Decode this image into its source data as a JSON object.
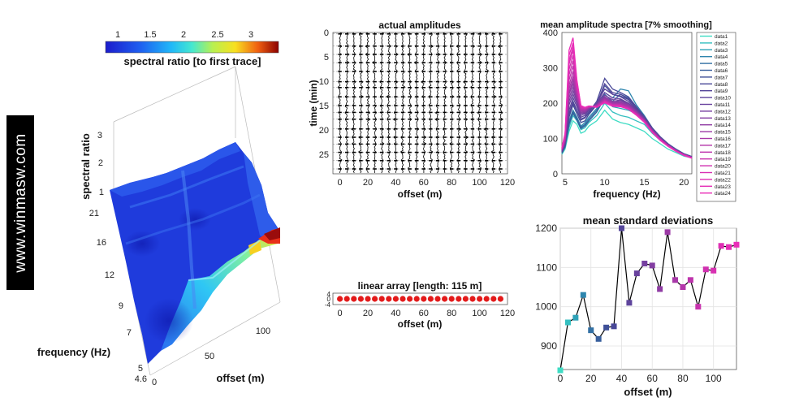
{
  "watermark": "www.winmasw.com",
  "surface3d": {
    "type": "surface",
    "colorbar": {
      "ticks": [
        "1",
        "1.5",
        "2",
        "2.5",
        "3"
      ],
      "label": "spectral ratio [to first trace]",
      "range": [
        0.8,
        3.4
      ]
    },
    "zlabel": "spectral ratio",
    "ylabel": "frequency (Hz)",
    "xlabel": "offset (m)",
    "z_ticks": [
      "1",
      "2",
      "3"
    ],
    "freq_ticks": [
      "21",
      "16",
      "12",
      "9",
      "7",
      "5",
      "4.6"
    ],
    "offset_ticks": [
      "0",
      "50",
      "100"
    ],
    "colors": {
      "low": "#1f1fd0",
      "mid": "#34d6e4",
      "high": "#8b0000"
    }
  },
  "chart_data": [
    {
      "id": "actual_amplitudes",
      "type": "wiggle",
      "title": "actual amplitudes",
      "xlabel": "offset (m)",
      "ylabel": "time (min)",
      "xlim": [
        -5,
        120
      ],
      "ylim": [
        0,
        29
      ],
      "x_ticks": [
        0,
        20,
        40,
        60,
        80,
        100,
        120
      ],
      "y_ticks": [
        0,
        5,
        10,
        15,
        20,
        25
      ],
      "trace_offsets": [
        0,
        5,
        10,
        15,
        20,
        25,
        30,
        35,
        40,
        45,
        50,
        55,
        60,
        65,
        70,
        75,
        80,
        85,
        90,
        95,
        100,
        105,
        110,
        115
      ],
      "event_times": [
        0.3,
        2.8,
        4.5,
        6.2,
        8.0,
        10.1,
        11.3,
        13.2,
        15.0,
        16.4,
        17.8,
        19.8,
        21.5,
        22.9,
        24.6,
        26.3,
        28.0
      ]
    },
    {
      "id": "mean_amplitude_spectra",
      "type": "line",
      "title": "mean amplitude spectra [7% smoothing]",
      "xlabel": "frequency (Hz)",
      "ylabel": "",
      "xlim": [
        4.6,
        21
      ],
      "ylim": [
        0,
        400
      ],
      "x_ticks": [
        5,
        10,
        15,
        20
      ],
      "y_ticks": [
        0,
        100,
        200,
        300,
        400
      ],
      "legend_position": "right",
      "freqs": [
        4.6,
        5,
        5.5,
        6,
        6.5,
        7,
        7.5,
        8,
        9,
        10,
        11,
        12,
        13,
        14,
        15,
        16,
        17,
        18,
        19,
        20,
        21
      ],
      "series": [
        {
          "name": "data1",
          "color": "#3fdcc4",
          "values": [
            55,
            70,
            120,
            150,
            140,
            115,
            120,
            135,
            150,
            180,
            155,
            145,
            140,
            130,
            120,
            100,
            85,
            70,
            60,
            50,
            45
          ]
        },
        {
          "name": "data2",
          "color": "#34bfc0",
          "values": [
            58,
            75,
            130,
            165,
            150,
            125,
            130,
            145,
            165,
            200,
            175,
            165,
            160,
            150,
            140,
            115,
            95,
            78,
            65,
            54,
            47
          ]
        },
        {
          "name": "data3",
          "color": "#2ea2b8",
          "values": [
            60,
            78,
            140,
            175,
            158,
            130,
            138,
            150,
            175,
            215,
            190,
            185,
            180,
            170,
            155,
            125,
            100,
            82,
            67,
            55,
            48
          ]
        },
        {
          "name": "data4",
          "color": "#2e86ae",
          "values": [
            62,
            80,
            150,
            180,
            160,
            135,
            145,
            160,
            185,
            230,
            215,
            240,
            235,
            195,
            165,
            130,
            105,
            85,
            70,
            57,
            49
          ]
        },
        {
          "name": "data5",
          "color": "#3270a4",
          "values": [
            60,
            78,
            145,
            178,
            158,
            132,
            140,
            155,
            180,
            225,
            205,
            225,
            215,
            185,
            160,
            128,
            103,
            84,
            69,
            56,
            48
          ]
        },
        {
          "name": "data6",
          "color": "#375e9c",
          "values": [
            58,
            76,
            140,
            172,
            152,
            128,
            135,
            150,
            175,
            215,
            200,
            210,
            200,
            178,
            155,
            125,
            101,
            82,
            67,
            55,
            47
          ]
        },
        {
          "name": "data7",
          "color": "#3f5098",
          "values": [
            62,
            82,
            160,
            195,
            170,
            145,
            150,
            168,
            195,
            250,
            225,
            220,
            210,
            185,
            160,
            128,
            104,
            84,
            68,
            56,
            48
          ]
        },
        {
          "name": "data8",
          "color": "#494898",
          "values": [
            64,
            84,
            170,
            205,
            180,
            155,
            160,
            175,
            205,
            270,
            240,
            230,
            218,
            190,
            162,
            130,
            105,
            85,
            69,
            57,
            49
          ]
        },
        {
          "name": "data9",
          "color": "#54469a",
          "values": [
            62,
            82,
            165,
            200,
            178,
            152,
            158,
            172,
            198,
            255,
            230,
            225,
            212,
            186,
            160,
            128,
            104,
            84,
            68,
            56,
            48
          ]
        },
        {
          "name": "data10",
          "color": "#5e449c",
          "values": [
            63,
            85,
            180,
            215,
            190,
            160,
            165,
            180,
            200,
            240,
            225,
            218,
            205,
            182,
            158,
            127,
            103,
            83,
            68,
            56,
            48
          ]
        },
        {
          "name": "data11",
          "color": "#69429e",
          "values": [
            65,
            88,
            195,
            225,
            198,
            165,
            170,
            182,
            198,
            230,
            215,
            212,
            200,
            180,
            156,
            126,
            102,
            83,
            68,
            56,
            47
          ]
        },
        {
          "name": "data12",
          "color": "#7640a0",
          "values": [
            66,
            90,
            205,
            235,
            205,
            170,
            172,
            184,
            197,
            222,
            210,
            208,
            198,
            178,
            155,
            125,
            101,
            82,
            67,
            55,
            47
          ]
        },
        {
          "name": "data13",
          "color": "#833ea2",
          "values": [
            67,
            92,
            215,
            245,
            210,
            172,
            174,
            185,
            196,
            218,
            205,
            205,
            196,
            177,
            154,
            124,
            100,
            82,
            67,
            55,
            47
          ]
        },
        {
          "name": "data14",
          "color": "#903ca4",
          "values": [
            68,
            95,
            225,
            255,
            215,
            175,
            176,
            186,
            195,
            215,
            202,
            202,
            194,
            175,
            153,
            123,
            100,
            81,
            66,
            55,
            46
          ]
        },
        {
          "name": "data15",
          "color": "#9c3aa6",
          "values": [
            68,
            96,
            230,
            265,
            220,
            178,
            178,
            187,
            194,
            212,
            200,
            200,
            192,
            174,
            152,
            122,
            99,
            81,
            66,
            54,
            46
          ]
        },
        {
          "name": "data16",
          "color": "#a838a8",
          "values": [
            69,
            98,
            240,
            275,
            225,
            180,
            180,
            188,
            193,
            210,
            198,
            198,
            190,
            172,
            151,
            121,
            98,
            80,
            66,
            54,
            46
          ]
        },
        {
          "name": "data17",
          "color": "#b436aa",
          "values": [
            70,
            100,
            250,
            290,
            230,
            182,
            182,
            189,
            192,
            208,
            197,
            196,
            188,
            171,
            150,
            120,
            98,
            80,
            65,
            54,
            46
          ]
        },
        {
          "name": "data18",
          "color": "#be34ac",
          "values": [
            70,
            102,
            265,
            305,
            235,
            184,
            183,
            190,
            191,
            207,
            196,
            195,
            187,
            170,
            149,
            120,
            97,
            79,
            65,
            53,
            45
          ]
        },
        {
          "name": "data19",
          "color": "#c833ae",
          "values": [
            71,
            104,
            280,
            320,
            240,
            186,
            184,
            190,
            190,
            206,
            195,
            194,
            186,
            169,
            148,
            119,
            97,
            79,
            65,
            53,
            45
          ]
        },
        {
          "name": "data20",
          "color": "#d031b0",
          "values": [
            72,
            106,
            295,
            335,
            245,
            188,
            185,
            191,
            190,
            205,
            194,
            193,
            185,
            168,
            148,
            119,
            96,
            79,
            64,
            53,
            45
          ]
        },
        {
          "name": "data21",
          "color": "#d830b2",
          "values": [
            72,
            108,
            310,
            350,
            250,
            190,
            186,
            191,
            189,
            204,
            193,
            192,
            184,
            167,
            147,
            118,
            96,
            78,
            64,
            53,
            45
          ]
        },
        {
          "name": "data22",
          "color": "#df2fb4",
          "values": [
            73,
            110,
            320,
            360,
            255,
            191,
            187,
            192,
            189,
            203,
            192,
            191,
            184,
            167,
            147,
            118,
            96,
            78,
            64,
            53,
            45
          ]
        },
        {
          "name": "data23",
          "color": "#e52eb6",
          "values": [
            73,
            112,
            335,
            370,
            260,
            192,
            188,
            192,
            188,
            202,
            192,
            191,
            183,
            166,
            146,
            118,
            95,
            78,
            64,
            52,
            45
          ]
        },
        {
          "name": "data24",
          "color": "#ea2db8",
          "values": [
            74,
            115,
            350,
            385,
            265,
            193,
            188,
            192,
            188,
            201,
            191,
            190,
            183,
            166,
            146,
            117,
            95,
            78,
            64,
            52,
            44
          ]
        }
      ]
    },
    {
      "id": "linear_array",
      "type": "scatter",
      "title": "linear array [length: 115 m]",
      "xlabel": "offset (m)",
      "xlim": [
        -5,
        120
      ],
      "ylim": [
        -5,
        5
      ],
      "x_ticks": [
        0,
        20,
        40,
        60,
        80,
        100,
        120
      ],
      "y_ticks": [
        "4",
        "0",
        "-4"
      ],
      "marker_color": "#e31a1a",
      "x": [
        0,
        5,
        10,
        15,
        20,
        25,
        30,
        35,
        40,
        45,
        50,
        55,
        60,
        65,
        70,
        75,
        80,
        85,
        90,
        95,
        100,
        105,
        110,
        115
      ],
      "y": [
        0,
        0,
        0,
        0,
        0,
        0,
        0,
        0,
        0,
        0,
        0,
        0,
        0,
        0,
        0,
        0,
        0,
        0,
        0,
        0,
        0,
        0,
        0,
        0
      ]
    },
    {
      "id": "mean_standard_deviations",
      "type": "line",
      "title": "mean standard deviations",
      "xlabel": "offset (m)",
      "ylabel": "",
      "xlim": [
        0,
        115
      ],
      "ylim": [
        840,
        1200
      ],
      "x_ticks": [
        0,
        20,
        40,
        60,
        80,
        100
      ],
      "y_ticks": [
        900,
        1000,
        1100,
        1200
      ],
      "grid": true,
      "x": [
        0,
        5,
        10,
        15,
        20,
        25,
        30,
        35,
        40,
        45,
        50,
        55,
        60,
        65,
        70,
        75,
        80,
        85,
        90,
        95,
        100,
        105,
        110,
        115
      ],
      "values": [
        838,
        960,
        972,
        1030,
        940,
        918,
        947,
        950,
        1200,
        1010,
        1085,
        1110,
        1105,
        1045,
        1190,
        1068,
        1050,
        1068,
        1000,
        1095,
        1092,
        1155,
        1152,
        1158
      ],
      "marker_colors": [
        "#3fdcc4",
        "#34bfc0",
        "#2ea2b8",
        "#2e86ae",
        "#3270a4",
        "#375e9c",
        "#3f5098",
        "#494898",
        "#54469a",
        "#5e449c",
        "#69429e",
        "#7640a0",
        "#833ea2",
        "#903ca4",
        "#9c3aa6",
        "#a838a8",
        "#b436aa",
        "#be34ac",
        "#c833ae",
        "#d031b0",
        "#d830b2",
        "#df2fb4",
        "#e52eb6",
        "#ea2db8"
      ]
    }
  ]
}
